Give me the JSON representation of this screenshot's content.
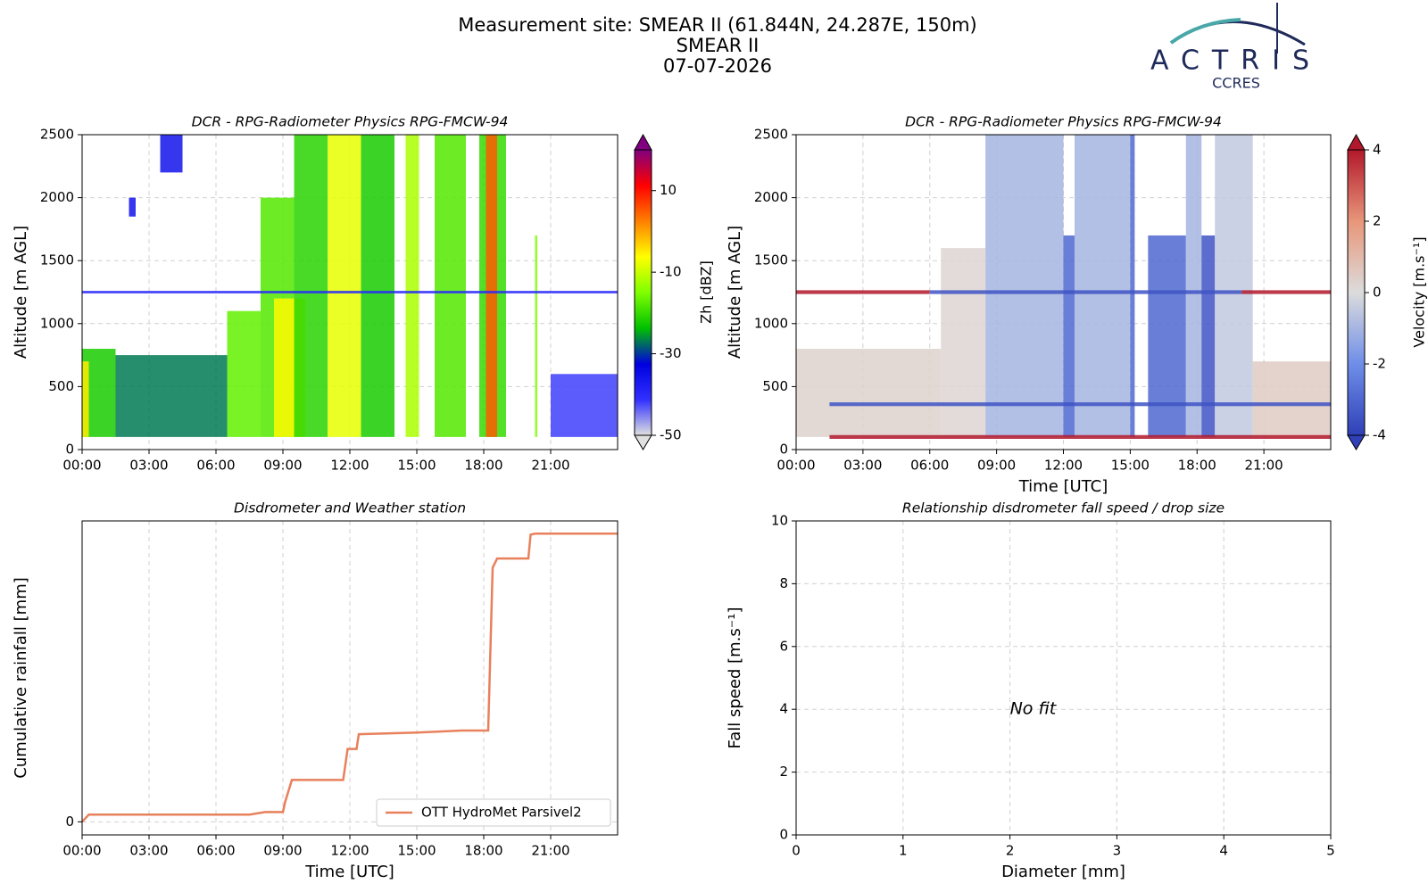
{
  "suptitle": {
    "site": "Measurement site: SMEAR II (61.844N, 24.287E, 150m)",
    "station": "SMEAR II",
    "date": "07-07-2026"
  },
  "logo": {
    "name": "ACTRIS",
    "subtitle": "CCRES"
  },
  "chart_data": [
    {
      "type": "heatmap",
      "title": "DCR - RPG-Radiometer Physics RPG-FMCW-94",
      "y_label": "Altitude [m AGL]",
      "xlim": [
        0,
        24
      ],
      "xticks": [
        {
          "value": 0,
          "label": "00:00"
        },
        {
          "value": 3,
          "label": "03:00"
        },
        {
          "value": 6,
          "label": "06:00"
        },
        {
          "value": 9,
          "label": "09:00"
        },
        {
          "value": 12,
          "label": "12:00"
        },
        {
          "value": 15,
          "label": "15:00"
        },
        {
          "value": 18,
          "label": "18:00"
        },
        {
          "value": 21,
          "label": "21:00"
        }
      ],
      "ylim": [
        0,
        2500
      ],
      "yticks": [
        0,
        500,
        1000,
        1500,
        2000,
        2500
      ],
      "grid": true,
      "colorbar_label": "Zh [dBZ]",
      "clim": [
        -50,
        20
      ],
      "cticks": [
        -50,
        -30,
        -10,
        10
      ],
      "colormap": [
        "#e0e0e0",
        "#3030ff",
        "#0000e0",
        "#00c000",
        "#7fff00",
        "#ffff00",
        "#ff8000",
        "#ff0000",
        "#800080"
      ],
      "cells": [
        {
          "x0": 21,
          "x1": 24,
          "y0": 100,
          "y1": 600,
          "value": -42
        },
        {
          "x0": 0,
          "x1": 1.5,
          "y0": 100,
          "y1": 800,
          "value": -22
        },
        {
          "x0": 1.5,
          "x1": 6.5,
          "y0": 100,
          "y1": 750,
          "value": -27
        },
        {
          "x0": 0,
          "x1": 0.3,
          "y0": 100,
          "y1": 700,
          "value": -5
        },
        {
          "x0": 6.5,
          "x1": 8,
          "y0": 100,
          "y1": 1100,
          "value": -17
        },
        {
          "x0": 8,
          "x1": 9.5,
          "y0": 100,
          "y1": 2000,
          "value": -18
        },
        {
          "x0": 8.6,
          "x1": 10,
          "y0": 100,
          "y1": 1200,
          "value": -6
        },
        {
          "x0": 9.5,
          "x1": 11,
          "y0": 100,
          "y1": 2500,
          "value": -21
        },
        {
          "x0": 11,
          "x1": 12.5,
          "y0": 100,
          "y1": 2500,
          "value": -8
        },
        {
          "x0": 12.5,
          "x1": 14,
          "y0": 100,
          "y1": 2500,
          "value": -22
        },
        {
          "x0": 14.5,
          "x1": 15.1,
          "y0": 100,
          "y1": 2500,
          "value": -12
        },
        {
          "x0": 15.8,
          "x1": 17.2,
          "y0": 100,
          "y1": 2500,
          "value": -18
        },
        {
          "x0": 17.8,
          "x1": 19,
          "y0": 100,
          "y1": 2500,
          "value": -20
        },
        {
          "x0": 18.1,
          "x1": 18.6,
          "y0": 100,
          "y1": 2500,
          "value": 5
        },
        {
          "x0": 20.3,
          "x1": 20.4,
          "y0": 100,
          "y1": 1700,
          "value": -15
        },
        {
          "x0": 3.5,
          "x1": 4.5,
          "y0": 2200,
          "y1": 2500,
          "value": -36
        },
        {
          "x0": 2.1,
          "x1": 2.4,
          "y0": 1850,
          "y1": 2000,
          "value": -36
        },
        {
          "x0": 0,
          "x1": 24,
          "y0": 1240,
          "y1": 1260,
          "value": -40
        }
      ]
    },
    {
      "type": "heatmap",
      "title": "DCR - RPG-Radiometer Physics RPG-FMCW-94",
      "y_label": "Altitude [m AGL]",
      "x_label": "Time [UTC]",
      "xlim": [
        0,
        24
      ],
      "xticks": [
        {
          "value": 0,
          "label": "00:00"
        },
        {
          "value": 3,
          "label": "03:00"
        },
        {
          "value": 6,
          "label": "06:00"
        },
        {
          "value": 9,
          "label": "09:00"
        },
        {
          "value": 12,
          "label": "12:00"
        },
        {
          "value": 15,
          "label": "15:00"
        },
        {
          "value": 18,
          "label": "18:00"
        },
        {
          "value": 21,
          "label": "21:00"
        }
      ],
      "ylim": [
        0,
        2500
      ],
      "yticks": [
        0,
        500,
        1000,
        1500,
        2000,
        2500
      ],
      "grid": true,
      "colorbar_label": "Velocity [m.s⁻¹]",
      "clim": [
        -4,
        4
      ],
      "cticks": [
        -4,
        -2,
        0,
        2,
        4
      ],
      "colormap": [
        "#2f40b8",
        "#6f8ee8",
        "#dcdcdc",
        "#e8967a",
        "#b2182b"
      ],
      "cells": [
        {
          "x0": 0,
          "x1": 6.5,
          "y0": 100,
          "y1": 800,
          "value": 0.3
        },
        {
          "x0": 6.5,
          "x1": 8.5,
          "y0": 100,
          "y1": 1600,
          "value": 0.2
        },
        {
          "x0": 8.5,
          "x1": 12,
          "y0": 100,
          "y1": 2500,
          "value": -1
        },
        {
          "x0": 12,
          "x1": 12.5,
          "y0": 100,
          "y1": 1700,
          "value": -3
        },
        {
          "x0": 12.5,
          "x1": 15,
          "y0": 100,
          "y1": 2500,
          "value": -1
        },
        {
          "x0": 15,
          "x1": 15.2,
          "y0": 100,
          "y1": 2500,
          "value": -3
        },
        {
          "x0": 15.8,
          "x1": 17.5,
          "y0": 100,
          "y1": 1700,
          "value": -3
        },
        {
          "x0": 17.5,
          "x1": 18.2,
          "y0": 100,
          "y1": 2500,
          "value": -1
        },
        {
          "x0": 18.2,
          "x1": 18.8,
          "y0": 100,
          "y1": 1700,
          "value": -3.5
        },
        {
          "x0": 18.8,
          "x1": 20.5,
          "y0": 100,
          "y1": 2500,
          "value": -0.5
        },
        {
          "x0": 20.5,
          "x1": 24,
          "y0": 100,
          "y1": 700,
          "value": 0.5
        },
        {
          "x0": 0,
          "x1": 6,
          "y0": 1235,
          "y1": 1265,
          "value": 4
        },
        {
          "x0": 6,
          "x1": 20,
          "y0": 1235,
          "y1": 1265,
          "value": -3.5
        },
        {
          "x0": 20,
          "x1": 24,
          "y0": 1235,
          "y1": 1265,
          "value": 4
        },
        {
          "x0": 1.5,
          "x1": 24,
          "y0": 345,
          "y1": 375,
          "value": -3.5
        },
        {
          "x0": 1.5,
          "x1": 24,
          "y0": 85,
          "y1": 115,
          "value": 4
        }
      ]
    },
    {
      "type": "line",
      "title": "Disdrometer and Weather station",
      "y_label": "Cumulative rainfall [mm]",
      "x_label": "Time [UTC]",
      "xlim": [
        0,
        24
      ],
      "xticks": [
        {
          "value": 0,
          "label": "00:00"
        },
        {
          "value": 3,
          "label": "03:00"
        },
        {
          "value": 6,
          "label": "06:00"
        },
        {
          "value": 9,
          "label": "09:00"
        },
        {
          "value": 12,
          "label": "12:00"
        },
        {
          "value": 15,
          "label": "15:00"
        },
        {
          "value": 18,
          "label": "18:00"
        },
        {
          "value": 21,
          "label": "21:00"
        }
      ],
      "ylim": [
        -0.4,
        9.2
      ],
      "yticks": [
        0
      ],
      "grid": true,
      "legend": "lower right",
      "x": [
        0,
        0.3,
        7.5,
        8.2,
        9.0,
        9.1,
        9.4,
        11.7,
        11.9,
        12.3,
        12.4,
        15,
        17,
        18.2,
        18.4,
        18.6,
        20.0,
        20.1,
        20.3,
        24
      ],
      "series": [
        {
          "name": "OTT HydroMet Parsivel2",
          "color": "#e8805c",
          "values": [
            0,
            0.22,
            0.22,
            0.3,
            0.3,
            0.61,
            1.28,
            1.28,
            2.23,
            2.23,
            2.68,
            2.73,
            2.79,
            2.79,
            7.77,
            8.05,
            8.05,
            8.78,
            8.81,
            8.81
          ]
        }
      ]
    },
    {
      "type": "scatter",
      "title": "Relationship disdrometer fall speed / drop size",
      "y_label": "Fall speed [m.s⁻¹]",
      "x_label": "Diameter [mm]",
      "xlim": [
        0,
        5
      ],
      "xticks": [
        0,
        1,
        2,
        3,
        4,
        5
      ],
      "ylim": [
        0,
        10
      ],
      "yticks": [
        0,
        2,
        4,
        6,
        8,
        10
      ],
      "grid": true,
      "annotation": "No fit",
      "x": [],
      "y": []
    }
  ]
}
